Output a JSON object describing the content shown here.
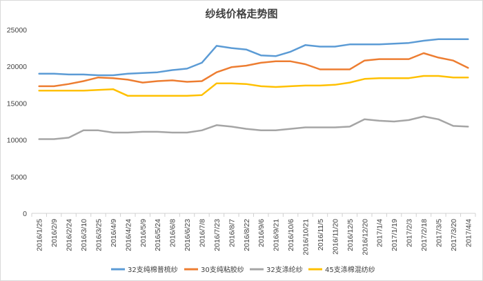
{
  "chart_data": {
    "type": "line",
    "title": "纱线价格走势图",
    "xlabel": "",
    "ylabel": "",
    "ylim": [
      0,
      25000
    ],
    "yticks": [
      0,
      5000,
      10000,
      15000,
      20000,
      25000
    ],
    "grid": false,
    "legend_position": "bottom",
    "x": [
      "2016/1/25",
      "2016/2/9",
      "2016/2/24",
      "2016/3/10",
      "2016/3/25",
      "2016/4/9",
      "2016/4/24",
      "2016/5/9",
      "2016/5/24",
      "2016/6/8",
      "2016/6/23",
      "2016/7/8",
      "2016/7/23",
      "2016/8/7",
      "2016/8/22",
      "2016/9/6",
      "2016/9/21",
      "2016/10/6",
      "2016/10/21",
      "2016/11/5",
      "2016/11/20",
      "2016/12/5",
      "2016/12/20",
      "2017/1/4",
      "2017/1/19",
      "2017/2/3",
      "2017/2/18",
      "2017/3/5",
      "2017/3/20",
      "2017/4/4"
    ],
    "series": [
      {
        "name": "32支纯棉普梳纱",
        "color": "#5b9bd5",
        "values": [
          19000,
          19000,
          18900,
          18900,
          18800,
          18800,
          19000,
          19100,
          19200,
          19500,
          19700,
          20500,
          22800,
          22500,
          22300,
          21500,
          21400,
          22000,
          22900,
          22700,
          22700,
          23000,
          23000,
          23000,
          23100,
          23200,
          23500,
          23700,
          23700,
          23700
        ]
      },
      {
        "name": "30支纯粘胶纱",
        "color": "#ed7d31",
        "values": [
          17300,
          17300,
          17600,
          18000,
          18500,
          18400,
          18200,
          17800,
          18000,
          18100,
          17900,
          18000,
          19200,
          19900,
          20100,
          20500,
          20700,
          20700,
          20300,
          19600,
          19600,
          19600,
          20800,
          21000,
          21000,
          21000,
          21800,
          21200,
          20800,
          19800
        ]
      },
      {
        "name": "32支涤纶纱",
        "color": "#a5a5a5",
        "values": [
          10100,
          10100,
          10300,
          11300,
          11300,
          11000,
          11000,
          11100,
          11100,
          11000,
          11000,
          11300,
          12000,
          11800,
          11500,
          11300,
          11300,
          11500,
          11700,
          11700,
          11700,
          11800,
          12800,
          12600,
          12500,
          12700,
          13200,
          12800,
          11900,
          11800
        ]
      },
      {
        "name": "45支涤棉混纺纱",
        "color": "#ffc000",
        "values": [
          16700,
          16700,
          16700,
          16700,
          16800,
          16900,
          16000,
          16000,
          16000,
          16000,
          16000,
          16100,
          17700,
          17700,
          17600,
          17300,
          17200,
          17300,
          17400,
          17400,
          17500,
          17800,
          18300,
          18400,
          18400,
          18400,
          18700,
          18700,
          18500,
          18500
        ]
      }
    ]
  }
}
